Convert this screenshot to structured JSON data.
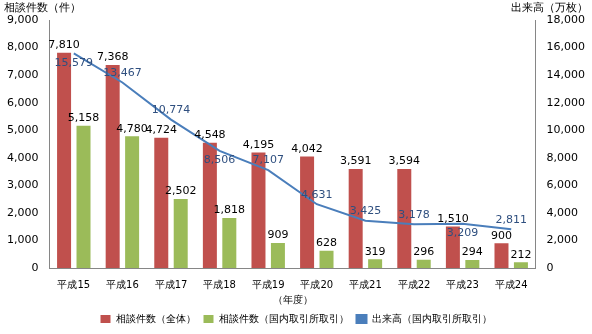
{
  "chart_data": {
    "type": "bar",
    "categories": [
      "平成15",
      "平成16",
      "平成17",
      "平成18",
      "平成19",
      "平成20",
      "平成21",
      "平成22",
      "平成23",
      "平成24"
    ],
    "x_label": "（年度）",
    "y_label": "相談件数（件）",
    "y2_label": "出来高（万枚）",
    "series": [
      {
        "name": "相談件数（全体）",
        "color": "#c0504d",
        "values": [
          7810,
          7368,
          4724,
          4548,
          4195,
          4042,
          3591,
          3594,
          1510,
          900
        ],
        "value_labels": [
          "7,810",
          "7,368",
          "4,724",
          "4,548",
          "4,195",
          "4,042",
          "3,591",
          "3,594",
          "1,510",
          "900"
        ]
      },
      {
        "name": "相談件数（国内取引所取引）",
        "color": "#9bbb59",
        "values": [
          5158,
          4780,
          2502,
          1818,
          909,
          628,
          319,
          296,
          294,
          212
        ],
        "value_labels": [
          "5,158",
          "4,780",
          "2,502",
          "1,818",
          "909",
          "628",
          "319",
          "296",
          "294",
          "212"
        ]
      },
      {
        "name": "出来高（国内取引所取引）",
        "type": "line",
        "axis": "y2",
        "color": "#4a7ebb",
        "marker": "none",
        "values": [
          15579,
          13467,
          10774,
          8506,
          7107,
          4631,
          3425,
          3178,
          3209,
          2811
        ],
        "value_labels": [
          "15,579",
          "13,467",
          "10,774",
          "8,506",
          "7,107",
          "4,631",
          "3,425",
          "3,178",
          "3,209",
          "2,811"
        ]
      }
    ],
    "ylim": [
      0,
      9000
    ],
    "yticks": [
      0,
      {
        "value": 1000,
        "label": "1,000"
      },
      {
        "value": 2000,
        "label": "2,000"
      },
      {
        "value": 3000,
        "label": "3,000"
      },
      {
        "value": 4000,
        "label": "4,000"
      },
      {
        "value": 5000,
        "label": "5,000"
      },
      {
        "value": 6000,
        "label": "6,000"
      },
      {
        "value": 7000,
        "label": "7,000"
      },
      {
        "value": 8000,
        "label": "8,000"
      },
      {
        "value": 9000,
        "label": "9,000"
      }
    ],
    "y2lim": [
      0,
      18000
    ],
    "y2ticks": [
      0,
      {
        "value": 2000,
        "label": "2,000"
      },
      {
        "value": 4000,
        "label": "4,000"
      },
      {
        "value": 6000,
        "label": "6,000"
      },
      {
        "value": 8000,
        "label": "8,000"
      },
      {
        "value": 10000,
        "label": "10,000"
      },
      {
        "value": 12000,
        "label": "12,000"
      },
      {
        "value": 14000,
        "label": "14,000"
      },
      {
        "value": 16000,
        "label": "16,000"
      },
      {
        "value": 18000,
        "label": "18,000"
      }
    ],
    "grid": false,
    "legend": "bottom",
    "data_labels": true
  }
}
